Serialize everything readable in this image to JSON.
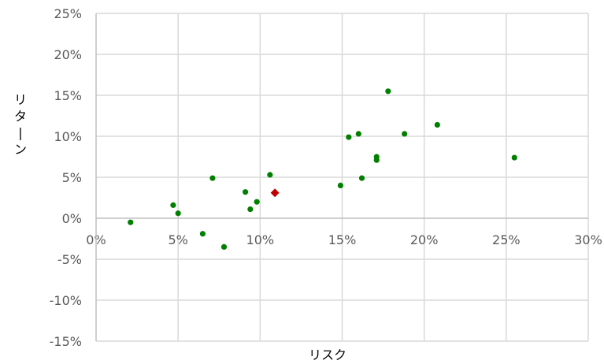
{
  "chart_data": {
    "type": "scatter",
    "title": "",
    "xlabel": "リスク",
    "ylabel": "リターン",
    "xlim": [
      0,
      30
    ],
    "ylim": [
      -15,
      25
    ],
    "x_ticks": [
      "0%",
      "5%",
      "10%",
      "15%",
      "20%",
      "25%",
      "30%"
    ],
    "y_ticks": [
      "25%",
      "20%",
      "15%",
      "10%",
      "5%",
      "0%",
      "-5%",
      "-10%",
      "-15%"
    ],
    "grid": true,
    "legend": "none",
    "series": [
      {
        "marker": "circle",
        "color": "#008000",
        "points": [
          {
            "x": 2.1,
            "y": -0.5
          },
          {
            "x": 4.7,
            "y": 1.6
          },
          {
            "x": 5.0,
            "y": 0.6
          },
          {
            "x": 6.5,
            "y": -1.9
          },
          {
            "x": 7.1,
            "y": 4.9
          },
          {
            "x": 7.8,
            "y": -3.5
          },
          {
            "x": 9.1,
            "y": 3.2
          },
          {
            "x": 9.4,
            "y": 1.1
          },
          {
            "x": 9.8,
            "y": 2.0
          },
          {
            "x": 10.6,
            "y": 5.3
          },
          {
            "x": 14.9,
            "y": 4.0
          },
          {
            "x": 15.4,
            "y": 9.9
          },
          {
            "x": 16.0,
            "y": 10.3
          },
          {
            "x": 16.2,
            "y": 4.9
          },
          {
            "x": 17.1,
            "y": 7.1
          },
          {
            "x": 17.1,
            "y": 7.5
          },
          {
            "x": 17.8,
            "y": 15.5
          },
          {
            "x": 18.8,
            "y": 10.3
          },
          {
            "x": 20.8,
            "y": 11.4
          },
          {
            "x": 25.5,
            "y": 7.4
          }
        ]
      },
      {
        "marker": "diamond",
        "color": "#C00000",
        "points": [
          {
            "x": 10.9,
            "y": 3.1
          }
        ]
      }
    ]
  }
}
